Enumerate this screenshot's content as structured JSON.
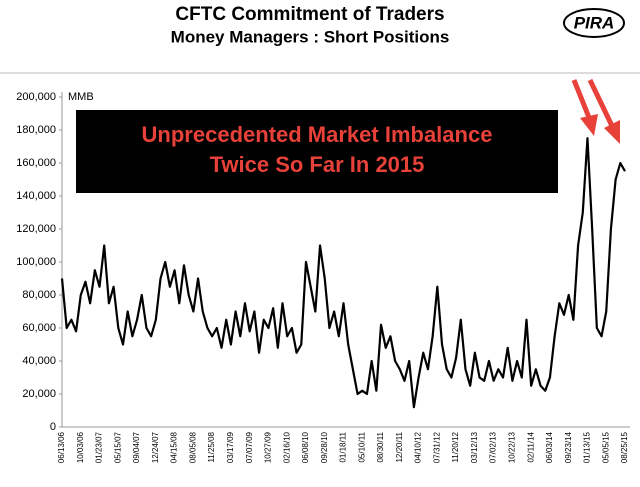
{
  "chart_data": {
    "type": "line",
    "title": "CFTC Commitment of Traders",
    "subtitle": "Money Managers : Short Positions",
    "logo": "PIRA",
    "y_label": "MMB",
    "annotation": [
      "Unprecedented Market Imbalance",
      "Twice So Far In 2015"
    ],
    "categories": [
      "06/13/06",
      null,
      null,
      null,
      "10/03/06",
      null,
      null,
      null,
      "01/23/07",
      null,
      null,
      null,
      "05/15/07",
      null,
      null,
      null,
      "09/04/07",
      null,
      null,
      null,
      "12/24/07",
      null,
      null,
      null,
      "04/15/08",
      null,
      null,
      null,
      "08/05/08",
      null,
      null,
      null,
      "11/25/08",
      null,
      null,
      null,
      "03/17/09",
      null,
      null,
      null,
      "07/07/09",
      null,
      null,
      null,
      "10/27/09",
      null,
      null,
      null,
      "02/16/10",
      null,
      null,
      null,
      "06/08/10",
      null,
      null,
      null,
      "09/28/10",
      null,
      null,
      null,
      "01/18/11",
      null,
      null,
      null,
      "05/10/11",
      null,
      null,
      null,
      "08/30/11",
      null,
      null,
      null,
      "12/20/11",
      null,
      null,
      null,
      "04/10/12",
      null,
      null,
      null,
      "07/31/12",
      null,
      null,
      null,
      "11/20/12",
      null,
      null,
      null,
      "03/12/13",
      null,
      null,
      null,
      "07/02/13",
      null,
      null,
      null,
      "10/22/13",
      null,
      null,
      null,
      "02/11/14",
      null,
      null,
      null,
      "06/03/14",
      null,
      null,
      null,
      "09/23/14",
      null,
      null,
      null,
      "01/13/15",
      null,
      null,
      null,
      "05/05/15",
      null,
      null,
      null,
      "08/25/15"
    ],
    "series": [
      {
        "name": "Money Managers Short Positions",
        "color": "#000000",
        "values": [
          90000,
          60000,
          65000,
          58000,
          80000,
          88000,
          75000,
          95000,
          85000,
          110000,
          75000,
          85000,
          60000,
          50000,
          70000,
          55000,
          65000,
          80000,
          60000,
          55000,
          65000,
          90000,
          100000,
          85000,
          95000,
          75000,
          98000,
          80000,
          70000,
          90000,
          70000,
          60000,
          55000,
          60000,
          48000,
          65000,
          50000,
          70000,
          55000,
          75000,
          58000,
          70000,
          45000,
          65000,
          60000,
          72000,
          48000,
          75000,
          55000,
          60000,
          45000,
          50000,
          100000,
          85000,
          70000,
          110000,
          90000,
          60000,
          70000,
          55000,
          75000,
          50000,
          35000,
          20000,
          22000,
          20000,
          40000,
          22000,
          62000,
          48000,
          55000,
          40000,
          35000,
          28000,
          40000,
          12000,
          30000,
          45000,
          35000,
          55000,
          85000,
          50000,
          35000,
          30000,
          42000,
          65000,
          35000,
          25000,
          45000,
          30000,
          28000,
          40000,
          28000,
          35000,
          30000,
          48000,
          28000,
          40000,
          30000,
          65000,
          25000,
          35000,
          25000,
          22000,
          30000,
          55000,
          75000,
          68000,
          80000,
          65000,
          110000,
          130000,
          175000,
          120000,
          60000,
          55000,
          70000,
          120000,
          150000,
          160000,
          155000
        ]
      }
    ],
    "ylim": [
      0,
      200000
    ],
    "yticks": [
      0,
      {
        "value": 20000,
        "label": "20,000"
      },
      {
        "value": 40000,
        "label": "40,000"
      },
      {
        "value": 60000,
        "label": "60,000"
      },
      {
        "value": 80000,
        "label": "80,000"
      },
      {
        "value": 100000,
        "label": "100,000"
      },
      {
        "value": 120000,
        "label": "120,000"
      },
      {
        "value": 140000,
        "label": "140,000"
      },
      {
        "value": 160000,
        "label": "160,000"
      },
      {
        "value": 180000,
        "label": "180,000"
      },
      {
        "value": 200000,
        "label": "200,000"
      }
    ]
  }
}
